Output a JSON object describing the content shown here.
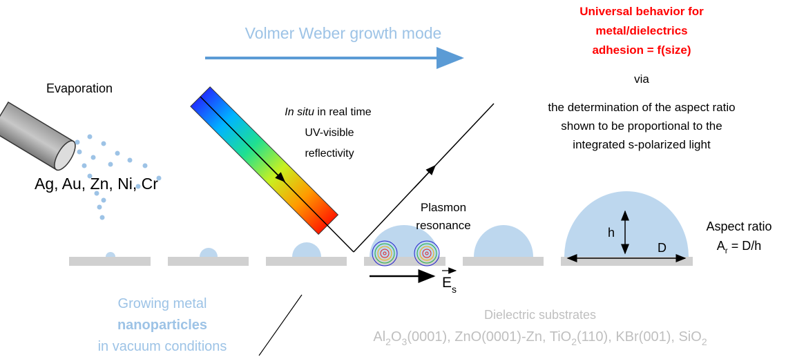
{
  "header": {
    "title": "Volmer Weber growth mode"
  },
  "conclusion": {
    "lines": [
      "Universal behavior for",
      "metal/dielectrics",
      "adhesion = f(size)"
    ],
    "via": "via",
    "detail": [
      "the determination of the aspect ratio",
      "shown to be proportional to the",
      "integrated s-polarized light"
    ]
  },
  "source": {
    "label": "Evaporation",
    "metals": "Ag, Au, Zn, Ni, Cr"
  },
  "probe": {
    "italic": "In situ",
    "rest": " in real time",
    "lines": [
      "UV-visible",
      "reflectivity"
    ]
  },
  "plasmon": {
    "lines": [
      "Plasmon",
      "resonance"
    ],
    "field": "E",
    "field_sub": "s"
  },
  "aspect": {
    "h": "h",
    "D": "D",
    "title": "Aspect ratio",
    "symbol": "A",
    "symbol_sub": "r",
    "formula": " = D/h"
  },
  "growth": {
    "line1": "Growing metal",
    "line2": "nanoparticles",
    "line3": "in vacuum conditions"
  },
  "substrates": {
    "title": "Dielectric substrates",
    "list": [
      {
        "text": "Al"
      },
      {
        "sub": "2"
      },
      {
        "text": "O"
      },
      {
        "sub": "3"
      },
      {
        "text": "(0001), ZnO(0001)-Zn, TiO"
      },
      {
        "sub": "2"
      },
      {
        "text": "(110), KBr(001), SiO"
      },
      {
        "sub": "2"
      }
    ]
  }
}
